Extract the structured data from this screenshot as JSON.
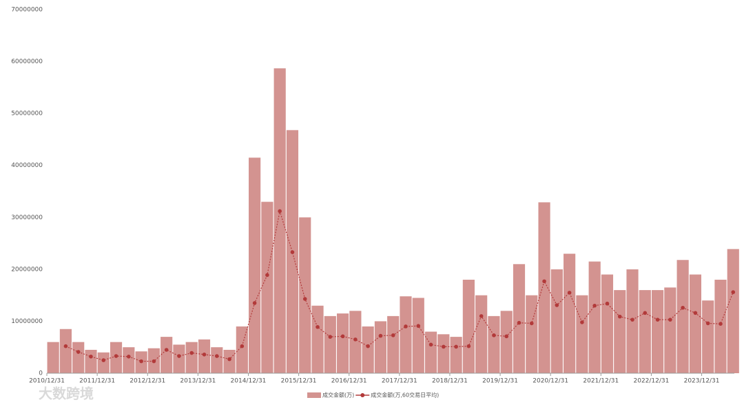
{
  "chart_data": {
    "type": "bar_line",
    "categories": [
      "2010/12/31",
      null,
      null,
      null,
      "2011/12/31",
      null,
      null,
      null,
      "2012/12/31",
      null,
      null,
      null,
      "2013/12/31",
      null,
      null,
      null,
      "2014/12/31",
      null,
      null,
      null,
      "2015/12/31",
      null,
      null,
      null,
      "2016/12/31",
      null,
      null,
      null,
      "2017/12/31",
      null,
      null,
      null,
      "2018/12/31",
      null,
      null,
      null,
      "2019/12/31",
      null,
      null,
      null,
      "2020/12/31",
      null,
      null,
      null,
      "2021/12/31",
      null,
      null,
      null,
      "2022/12/31",
      null,
      null,
      null,
      "2023/12/31",
      null,
      null
    ],
    "series": [
      {
        "name": "成交金额(万)",
        "kind": "bar",
        "color": "#d39390",
        "values": [
          6000000,
          8500000,
          6000000,
          4500000,
          4000000,
          6000000,
          5000000,
          4200000,
          4800000,
          7000000,
          5500000,
          6000000,
          6500000,
          5000000,
          4500000,
          9000000,
          41500000,
          33000000,
          58700000,
          46800000,
          30000000,
          13000000,
          11000000,
          11500000,
          12000000,
          9000000,
          10000000,
          11000000,
          14800000,
          14500000,
          8000000,
          7500000,
          7000000,
          18000000,
          15000000,
          11000000,
          12000000,
          21000000,
          15000000,
          32900000,
          20000000,
          23000000,
          15000000,
          21500000,
          19000000,
          16000000,
          20000000,
          16000000,
          16000000,
          16500000,
          21800000,
          19000000,
          14000000,
          18000000,
          23900000
        ]
      },
      {
        "name": "成交金额(万,60交易日平均)",
        "kind": "line",
        "color": "#b23a3a",
        "values": [
          null,
          5200000,
          4100000,
          3200000,
          2500000,
          3300000,
          3200000,
          2300000,
          2300000,
          4500000,
          3300000,
          3900000,
          3600000,
          3300000,
          2700000,
          5200000,
          13500000,
          18900000,
          31200000,
          23300000,
          14300000,
          8900000,
          7000000,
          7100000,
          6500000,
          5200000,
          7200000,
          7300000,
          9000000,
          9100000,
          5500000,
          5100000,
          5100000,
          5200000,
          11000000,
          7300000,
          7100000,
          9700000,
          9600000,
          17700000,
          13100000,
          15500000,
          9800000,
          13000000,
          13400000,
          10900000,
          10300000,
          11600000,
          10300000,
          10300000,
          12600000,
          11600000,
          9600000,
          9500000,
          15600000
        ]
      }
    ],
    "ylim": [
      0,
      70000000
    ],
    "yticks": [
      0,
      10000000,
      20000000,
      30000000,
      40000000,
      50000000,
      60000000,
      70000000
    ],
    "legend": "bottom",
    "watermark": "大数跨境"
  }
}
